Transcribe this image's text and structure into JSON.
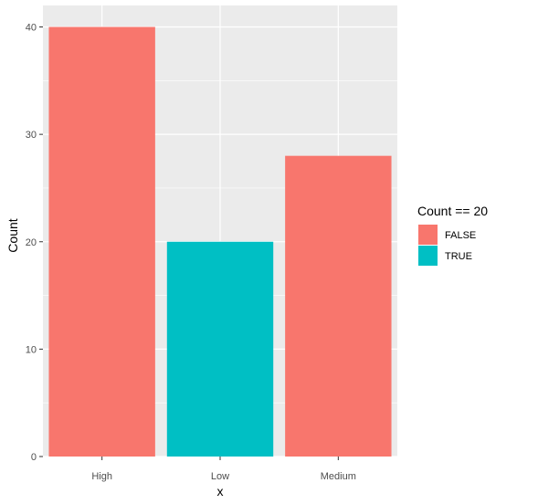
{
  "chart_data": {
    "type": "bar",
    "categories": [
      "High",
      "Low",
      "Medium"
    ],
    "values": [
      40,
      20,
      28
    ],
    "fill_groups": [
      "FALSE",
      "TRUE",
      "FALSE"
    ],
    "title": "",
    "xlabel": "x",
    "ylabel": "Count",
    "ylim": [
      0,
      42
    ],
    "yticks": [
      0,
      10,
      20,
      30,
      40
    ],
    "grid": true,
    "legend": {
      "title": "Count == 20",
      "placement": "right",
      "entries": [
        {
          "label": "FALSE",
          "color": "#F8766D"
        },
        {
          "label": "TRUE",
          "color": "#00BFC4"
        }
      ]
    },
    "colors": {
      "panel_background": "#EBEBEB",
      "grid_major": "#FFFFFF",
      "FALSE": "#F8766D",
      "TRUE": "#00BFC4"
    }
  }
}
